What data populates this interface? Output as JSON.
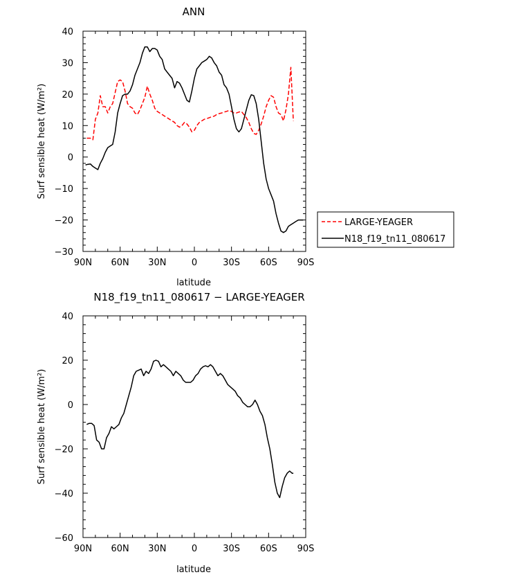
{
  "chart_data": [
    {
      "type": "line",
      "title": "ANN",
      "xlabel": "latitude",
      "ylabel": "Surf sensible heat (W/m²)",
      "xlim": [
        90,
        -90
      ],
      "ylim": [
        -30,
        40
      ],
      "x_ticks": [
        {
          "value": 90,
          "label": "90N"
        },
        {
          "value": 60,
          "label": "60N"
        },
        {
          "value": 30,
          "label": "30N"
        },
        {
          "value": 0,
          "label": "0"
        },
        {
          "value": -30,
          "label": "30S"
        },
        {
          "value": -60,
          "label": "60S"
        },
        {
          "value": -90,
          "label": "90S"
        }
      ],
      "y_ticks": [
        {
          "value": -30,
          "label": "−30"
        },
        {
          "value": -20,
          "label": "−20"
        },
        {
          "value": -10,
          "label": "−10"
        },
        {
          "value": 0,
          "label": "0"
        },
        {
          "value": 10,
          "label": "10"
        },
        {
          "value": 20,
          "label": "20"
        },
        {
          "value": 30,
          "label": "30"
        },
        {
          "value": 40,
          "label": "40"
        }
      ],
      "legend": {
        "position": "right"
      },
      "series": [
        {
          "name": "LARGE-YEAGER",
          "color": "#ff0000",
          "dash": "dashed",
          "x": [
            87,
            84,
            82,
            80,
            78,
            76,
            74,
            72,
            70,
            68,
            66,
            64,
            62,
            60,
            58,
            56,
            54,
            52,
            50,
            48,
            46,
            44,
            42,
            40,
            38,
            36,
            34,
            32,
            30,
            28,
            26,
            24,
            22,
            20,
            18,
            16,
            14,
            12,
            10,
            8,
            6,
            4,
            2,
            0,
            -2,
            -4,
            -6,
            -8,
            -10,
            -12,
            -14,
            -16,
            -18,
            -20,
            -22,
            -24,
            -26,
            -28,
            -30,
            -32,
            -34,
            -36,
            -38,
            -40,
            -42,
            -44,
            -46,
            -48,
            -50,
            -52,
            -54,
            -56,
            -58,
            -60,
            -62,
            -64,
            -66,
            -68,
            -70,
            -72,
            -74,
            -76,
            -78,
            -80
          ],
          "y": [
            6,
            6,
            5.5,
            12,
            14,
            19.5,
            16,
            16,
            14,
            16,
            17,
            20.5,
            24,
            24.5,
            24,
            21,
            17,
            16,
            15.5,
            14,
            13.5,
            15,
            17,
            19,
            22.5,
            20,
            18,
            15.5,
            14.5,
            14,
            13.5,
            13,
            12.5,
            12,
            11.5,
            11,
            10,
            9.5,
            10,
            11,
            10.5,
            9.5,
            8,
            8.5,
            10,
            11,
            11.5,
            12,
            12.2,
            12.5,
            12.8,
            13,
            13.5,
            13.8,
            14,
            14.3,
            14.5,
            14.8,
            14.5,
            14,
            14,
            14.3,
            14.5,
            13.5,
            12.5,
            11,
            9,
            7.5,
            7.2,
            8.5,
            10.5,
            13,
            16,
            18,
            19.5,
            19,
            16,
            14,
            13.5,
            11.5,
            15,
            20,
            28.5,
            11.5
          ]
        },
        {
          "name": "N18_f19_tn11_080617",
          "color": "#000000",
          "dash": "solid",
          "x": [
            88,
            86,
            84,
            82,
            80,
            78,
            76,
            74,
            72,
            70,
            68,
            66,
            64,
            62,
            60,
            58,
            56,
            54,
            52,
            50,
            48,
            46,
            44,
            42,
            40,
            38,
            36,
            34,
            32,
            30,
            28,
            26,
            24,
            22,
            20,
            18,
            16,
            14,
            12,
            10,
            8,
            6,
            4,
            2,
            0,
            -2,
            -4,
            -6,
            -8,
            -10,
            -12,
            -14,
            -16,
            -18,
            -20,
            -22,
            -24,
            -26,
            -28,
            -30,
            -32,
            -34,
            -36,
            -38,
            -40,
            -42,
            -44,
            -46,
            -48,
            -50,
            -52,
            -54,
            -56,
            -58,
            -60,
            -62,
            -64,
            -66,
            -68,
            -70,
            -72,
            -74,
            -76,
            -78,
            -80,
            -82,
            -84,
            -86,
            -88
          ],
          "y": [
            -2.5,
            -2.3,
            -2.2,
            -3,
            -3.5,
            -4,
            -2,
            -0.5,
            1.5,
            3,
            3.5,
            4,
            8,
            14,
            17,
            19.5,
            20,
            20,
            21,
            23,
            26,
            28,
            30,
            33,
            35,
            35,
            33.5,
            34.5,
            34.5,
            34,
            32,
            31,
            28,
            27,
            26,
            25,
            22,
            24,
            23.5,
            22,
            20,
            18,
            17.5,
            21,
            25,
            28,
            29,
            30,
            30.5,
            31,
            32,
            31.5,
            30,
            29,
            27,
            26,
            23,
            22,
            20,
            16,
            12,
            9,
            8,
            9,
            12,
            15,
            18,
            19.8,
            19.5,
            17,
            12,
            5,
            -2,
            -7,
            -10,
            -12,
            -14,
            -18,
            -21,
            -23.5,
            -24,
            -23.5,
            -22,
            -21.5,
            -21,
            -20.5,
            -20,
            -20,
            -20
          ]
        }
      ]
    },
    {
      "type": "line",
      "title": "N18_f19_tn11_080617 − LARGE-YEAGER",
      "xlabel": "latitude",
      "ylabel": "Surf sensible heat (W/m²)",
      "xlim": [
        90,
        -90
      ],
      "ylim": [
        -60,
        40
      ],
      "x_ticks": [
        {
          "value": 90,
          "label": "90N"
        },
        {
          "value": 60,
          "label": "60N"
        },
        {
          "value": 30,
          "label": "30N"
        },
        {
          "value": 0,
          "label": "0"
        },
        {
          "value": -30,
          "label": "30S"
        },
        {
          "value": -60,
          "label": "60S"
        },
        {
          "value": -90,
          "label": "90S"
        }
      ],
      "y_ticks": [
        {
          "value": -60,
          "label": "−60"
        },
        {
          "value": -40,
          "label": "−40"
        },
        {
          "value": -20,
          "label": "−20"
        },
        {
          "value": 0,
          "label": "0"
        },
        {
          "value": 20,
          "label": "20"
        },
        {
          "value": 40,
          "label": "40"
        }
      ],
      "series": [
        {
          "name": "",
          "color": "#000000",
          "dash": "solid",
          "x": [
            87,
            85,
            83,
            81,
            79,
            77,
            75,
            73,
            71,
            69,
            67,
            65,
            63,
            61,
            59,
            57,
            55,
            53,
            51,
            49,
            47,
            45,
            43,
            41,
            39,
            37,
            35,
            33,
            31,
            29,
            27,
            25,
            23,
            21,
            19,
            17,
            15,
            13,
            11,
            9,
            7,
            5,
            3,
            1,
            -1,
            -3,
            -5,
            -7,
            -9,
            -11,
            -13,
            -15,
            -17,
            -19,
            -21,
            -23,
            -25,
            -27,
            -29,
            -31,
            -33,
            -35,
            -37,
            -39,
            -41,
            -43,
            -45,
            -47,
            -49,
            -51,
            -53,
            -55,
            -57,
            -59,
            -61,
            -63,
            -65,
            -67,
            -69,
            -71,
            -73,
            -75,
            -77,
            -79,
            -80
          ],
          "y": [
            -9,
            -8.5,
            -8.5,
            -9.5,
            -16,
            -17,
            -20,
            -20,
            -15,
            -13,
            -10,
            -11,
            -10,
            -9,
            -6,
            -4,
            0,
            4,
            8,
            13,
            15,
            15.5,
            16,
            13,
            15,
            14,
            16,
            19.5,
            20,
            19.5,
            17,
            18,
            17,
            16,
            15,
            13,
            15,
            14,
            13,
            11,
            10,
            10,
            10,
            11,
            13,
            14,
            16,
            17,
            17.5,
            17,
            18,
            17,
            15,
            13,
            14,
            13,
            11,
            9,
            8,
            7,
            6,
            4,
            3,
            1,
            0,
            -1,
            -1,
            0,
            2,
            0,
            -3,
            -5,
            -9,
            -15,
            -20,
            -27,
            -35,
            -40,
            -42,
            -37,
            -33,
            -31,
            -30,
            -31,
            -31
          ]
        }
      ]
    }
  ],
  "legend_entries": [
    "LARGE-YEAGER",
    "N18_f19_tn11_080617"
  ]
}
